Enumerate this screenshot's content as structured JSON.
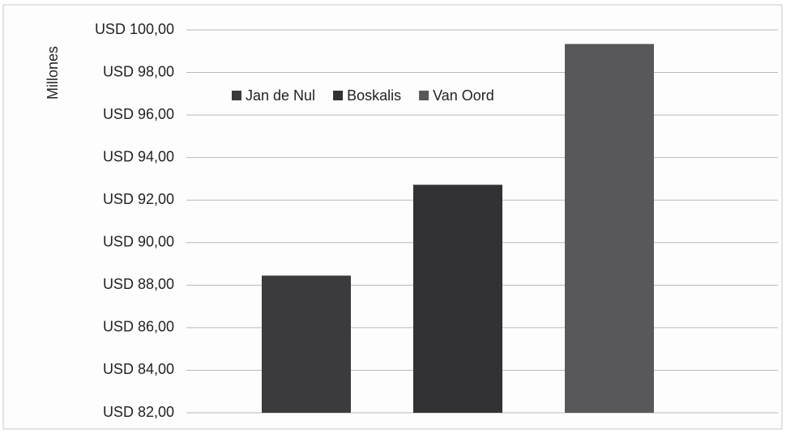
{
  "chart_data": {
    "type": "bar",
    "y_label": "Millones",
    "categories": [
      null
    ],
    "series": [
      {
        "name": "Jan de Nul",
        "color": "#3b3b3d",
        "values": [
          88.45
        ]
      },
      {
        "name": "Boskalis",
        "color": "#323234",
        "values": [
          92.72
        ]
      },
      {
        "name": "Van Oord",
        "color": "#58585a",
        "values": [
          99.34
        ]
      }
    ],
    "ylim": [
      82,
      100
    ],
    "yticks": [
      {
        "value": 82,
        "label": "USD 82,00"
      },
      {
        "value": 84,
        "label": "USD 84,00"
      },
      {
        "value": 86,
        "label": "USD 86,00"
      },
      {
        "value": 88,
        "label": "USD 88,00"
      },
      {
        "value": 90,
        "label": "USD 90,00"
      },
      {
        "value": 92,
        "label": "USD 92,00"
      },
      {
        "value": 94,
        "label": "USD 94,00"
      },
      {
        "value": 96,
        "label": "USD 96,00"
      },
      {
        "value": 98,
        "label": "USD 98,00"
      },
      {
        "value": 100,
        "label": "USD 100,00"
      }
    ],
    "grid": true
  }
}
